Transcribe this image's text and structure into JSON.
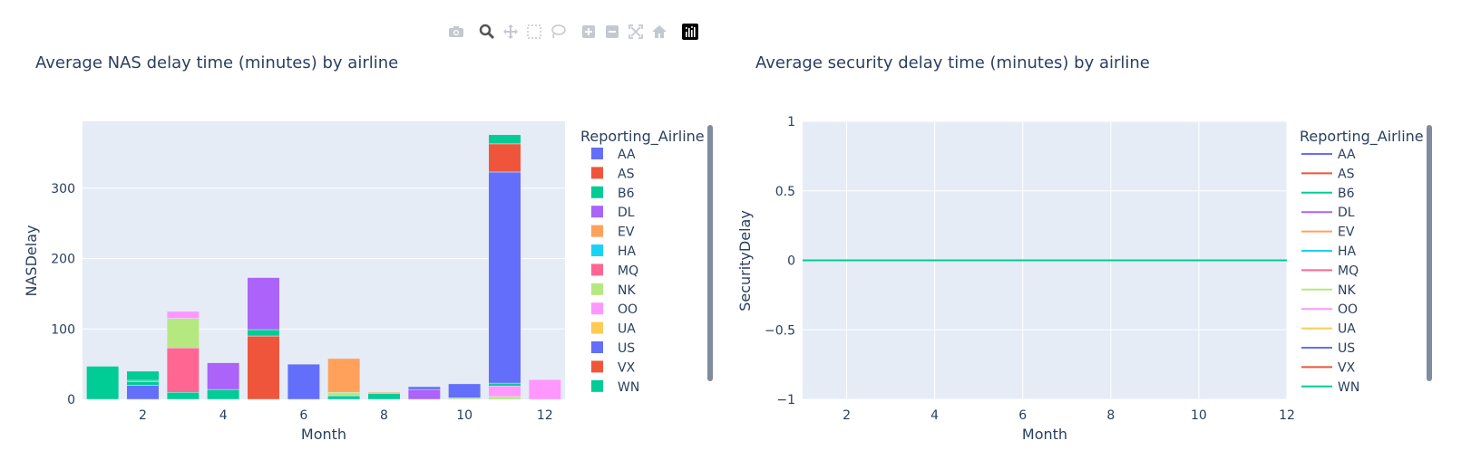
{
  "toolbar": {
    "icons": [
      "camera-icon",
      "zoom-icon",
      "pan-icon",
      "box-select-icon",
      "lasso-select-icon",
      "zoom-in-icon",
      "zoom-out-icon",
      "autoscale-icon",
      "reset-axes-icon",
      "plotly-logo-icon"
    ]
  },
  "colors": {
    "AA": "#636efa",
    "AS": "#EF553B",
    "B6": "#00cc96",
    "DL": "#ab63fa",
    "EV": "#FFA15A",
    "HA": "#19d3f3",
    "MQ": "#FF6692",
    "NK": "#B6E880",
    "OO": "#FF97FF",
    "UA": "#FECB52",
    "US": "#636efa",
    "VX": "#EF553B",
    "WN": "#00cc96"
  },
  "chart_data": [
    {
      "type": "bar",
      "title": "Average NAS delay time (minutes) by airline",
      "xlabel": "Month",
      "ylabel": "NASDelay",
      "legend_title": "Reporting_Airline",
      "legend_placement": "right",
      "grid": true,
      "xlim": [
        0.5,
        12.5
      ],
      "ylim": [
        0,
        395
      ],
      "x_ticks": [
        "2",
        "4",
        "6",
        "8",
        "10",
        "12"
      ],
      "y_ticks": [
        "0",
        "100",
        "200",
        "300"
      ],
      "legend": [
        "AA",
        "AS",
        "B6",
        "DL",
        "EV",
        "HA",
        "MQ",
        "NK",
        "OO",
        "UA",
        "US",
        "VX",
        "WN"
      ],
      "stacks": [
        {
          "month": 1,
          "segments": [
            {
              "airline": "B6",
              "value": 47
            }
          ]
        },
        {
          "month": 2,
          "segments": [
            {
              "airline": "AA",
              "value": 20
            },
            {
              "airline": "B6",
              "value": 5
            },
            {
              "airline": "WN",
              "value": 2
            },
            {
              "airline": "B6",
              "value": 13
            }
          ]
        },
        {
          "month": 3,
          "segments": [
            {
              "airline": "WN",
              "value": 10
            },
            {
              "airline": "MQ",
              "value": 63
            },
            {
              "airline": "NK",
              "value": 42
            },
            {
              "airline": "OO",
              "value": 10
            }
          ]
        },
        {
          "month": 4,
          "segments": [
            {
              "airline": "WN",
              "value": 14
            },
            {
              "airline": "DL",
              "value": 38
            }
          ]
        },
        {
          "month": 5,
          "segments": [
            {
              "airline": "AS",
              "value": 90
            },
            {
              "airline": "B6",
              "value": 9
            },
            {
              "airline": "DL",
              "value": 74
            }
          ]
        },
        {
          "month": 6,
          "segments": [
            {
              "airline": "AA",
              "value": 50
            }
          ]
        },
        {
          "month": 7,
          "segments": [
            {
              "airline": "WN",
              "value": 5
            },
            {
              "airline": "NK",
              "value": 5
            },
            {
              "airline": "EV",
              "value": 48
            }
          ]
        },
        {
          "month": 8,
          "segments": [
            {
              "airline": "WN",
              "value": 8
            },
            {
              "airline": "EV",
              "value": 2
            }
          ]
        },
        {
          "month": 9,
          "segments": [
            {
              "airline": "DL",
              "value": 14
            },
            {
              "airline": "AA",
              "value": 4
            }
          ]
        },
        {
          "month": 10,
          "segments": [
            {
              "airline": "NK",
              "value": 2
            },
            {
              "airline": "AA",
              "value": 20
            }
          ]
        },
        {
          "month": 11,
          "segments": [
            {
              "airline": "NK",
              "value": 4
            },
            {
              "airline": "OO",
              "value": 15
            },
            {
              "airline": "B6",
              "value": 4
            },
            {
              "airline": "AA",
              "value": 300
            },
            {
              "airline": "AS",
              "value": 40
            },
            {
              "airline": "WN",
              "value": 13
            }
          ]
        },
        {
          "month": 12,
          "segments": [
            {
              "airline": "OO",
              "value": 28
            }
          ]
        }
      ]
    },
    {
      "type": "line",
      "title": "Average security delay time (minutes) by airline",
      "xlabel": "Month",
      "ylabel": "SecurityDelay",
      "legend_title": "Reporting_Airline",
      "legend_placement": "right",
      "grid": true,
      "xlim": [
        1,
        12
      ],
      "ylim": [
        -1,
        1
      ],
      "x_ticks": [
        "2",
        "4",
        "6",
        "8",
        "10",
        "12"
      ],
      "y_ticks": [
        "1",
        "0.5",
        "0",
        "−0.5",
        "−1"
      ],
      "y_tick_values": [
        1,
        0.5,
        0,
        -0.5,
        -1
      ],
      "legend": [
        "AA",
        "AS",
        "B6",
        "DL",
        "EV",
        "HA",
        "MQ",
        "NK",
        "OO",
        "UA",
        "US",
        "VX",
        "WN"
      ],
      "series": [
        {
          "name": "DL",
          "x": [
            4,
            5
          ],
          "y": [
            0,
            0
          ]
        },
        {
          "name": "B6",
          "x": [
            1,
            4,
            5,
            12
          ],
          "y": [
            0,
            0,
            0,
            0
          ]
        }
      ]
    }
  ]
}
